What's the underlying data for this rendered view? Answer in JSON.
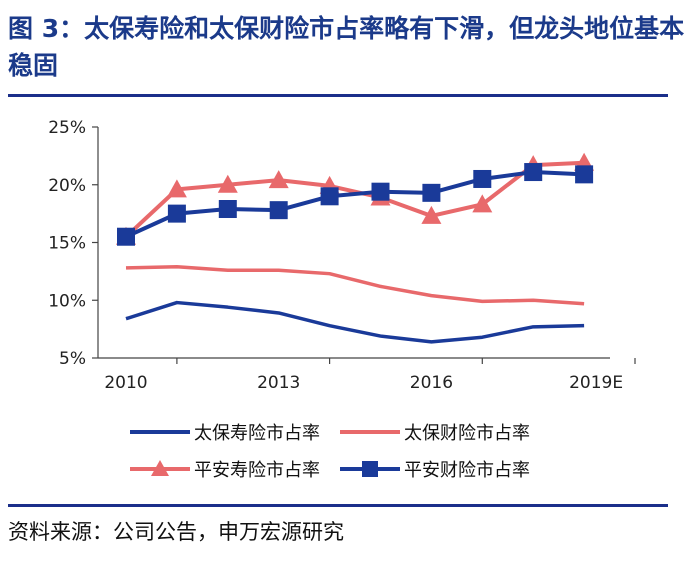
{
  "figure": {
    "title": "图 3：太保寿险和太保财险市占率略有下滑，但龙头地位基本稳固",
    "source": "资料来源：公司公告，申万宏源研究"
  },
  "chart_data": {
    "type": "line",
    "title": "图 3：太保寿险和太保财险市占率略有下滑，但龙头地位基本稳固",
    "x": [
      "2010",
      "2011",
      "2012",
      "2013",
      "2014",
      "2015",
      "2016",
      "2017",
      "2018",
      "2019E"
    ],
    "x_tick_labels": [
      "2010",
      "2013",
      "2016",
      "2019E"
    ],
    "y_tick_labels": [
      "5%",
      "10%",
      "15%",
      "20%",
      "25%"
    ],
    "ylim": [
      5,
      25
    ],
    "y_ticks": [
      5,
      10,
      15,
      20,
      25
    ],
    "ylabel": "",
    "xlabel": "",
    "legend_position": "bottom",
    "series": [
      {
        "name": "太保寿险市占率",
        "color": "#1a3a99",
        "marker": "none",
        "values": [
          8.4,
          9.8,
          9.4,
          8.9,
          7.8,
          6.9,
          6.4,
          6.8,
          7.7,
          7.8
        ]
      },
      {
        "name": "太保财险市占率",
        "color": "#e8696b",
        "marker": "none",
        "values": [
          12.8,
          12.9,
          12.6,
          12.6,
          12.3,
          11.2,
          10.4,
          9.9,
          10.0,
          9.7
        ]
      },
      {
        "name": "平安寿险市占率",
        "color": "#e8696b",
        "marker": "triangle",
        "values": [
          15.5,
          19.6,
          20.0,
          20.4,
          19.9,
          18.9,
          17.3,
          18.3,
          21.7,
          21.9
        ]
      },
      {
        "name": "平安财险市占率",
        "color": "#1a3a99",
        "marker": "square",
        "values": [
          15.5,
          17.5,
          17.9,
          17.8,
          19.0,
          19.4,
          19.3,
          20.5,
          21.1,
          20.9
        ]
      }
    ]
  }
}
